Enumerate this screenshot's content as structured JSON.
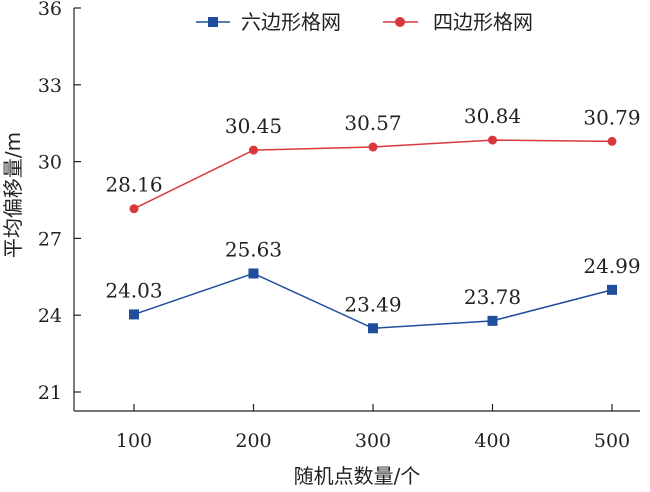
{
  "chart_data": {
    "type": "line",
    "title": "",
    "xlabel": "随机点数量/个",
    "ylabel": "平均偏移量/m",
    "categories": [
      "100",
      "200",
      "300",
      "400",
      "500"
    ],
    "ylim": [
      21,
      36
    ],
    "yticks": [
      "21",
      "24",
      "27",
      "30",
      "33",
      "36"
    ],
    "grid": false,
    "legend_position": "top",
    "series": [
      {
        "name": "六边形格网",
        "color": "#1f4e9c",
        "marker": "square",
        "values": [
          24.03,
          25.63,
          23.49,
          23.78,
          24.99
        ],
        "labels": [
          "24.03",
          "25.63",
          "23.49",
          "23.78",
          "24.99"
        ]
      },
      {
        "name": "四边形格网",
        "color": "#d9383a",
        "marker": "circle",
        "values": [
          28.16,
          30.45,
          30.57,
          30.84,
          30.79
        ],
        "labels": [
          "28.16",
          "30.45",
          "30.57",
          "30.84",
          "30.79"
        ]
      }
    ]
  }
}
